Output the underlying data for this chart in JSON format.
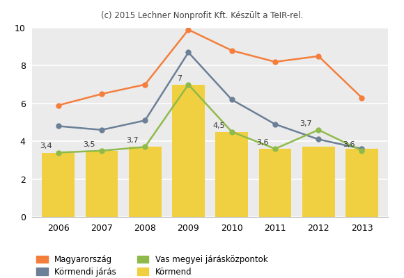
{
  "years": [
    2006,
    2007,
    2008,
    2009,
    2010,
    2011,
    2012,
    2013
  ],
  "magyarorszag": [
    5.9,
    6.5,
    7.0,
    9.9,
    8.8,
    8.2,
    8.5,
    6.3
  ],
  "kormendi_jaras": [
    4.8,
    4.6,
    5.1,
    8.7,
    6.2,
    4.9,
    4.1,
    3.6
  ],
  "vas_megyei": [
    3.4,
    3.5,
    3.7,
    7.0,
    4.5,
    3.6,
    4.6,
    3.5
  ],
  "kormend_bars": [
    3.4,
    3.5,
    3.7,
    7.0,
    4.5,
    3.6,
    3.7,
    3.6
  ],
  "vas_labels": [
    "3,4",
    "3,5",
    "3,7",
    "7",
    "4,5",
    "3,6",
    "3,7",
    "3,6"
  ],
  "color_magyarorszag": "#f47e3c",
  "color_kormendi_jaras": "#6b7f96",
  "color_vas_megyei": "#8fba4b",
  "color_kormend_bar": "#f0d040",
  "title": "(c) 2015 Lechner Nonprofit Kft. Készült a TeIR-rel.",
  "ylim": [
    0,
    10
  ],
  "yticks": [
    0,
    2,
    4,
    6,
    8,
    10
  ],
  "bg_color": "#ebebeb",
  "legend_magyarorszag": "Magyarország",
  "legend_kormendi_jaras": "Körmendi járás",
  "legend_vas": "Vas megyei járásközpontok",
  "legend_kormend": "Körmend"
}
